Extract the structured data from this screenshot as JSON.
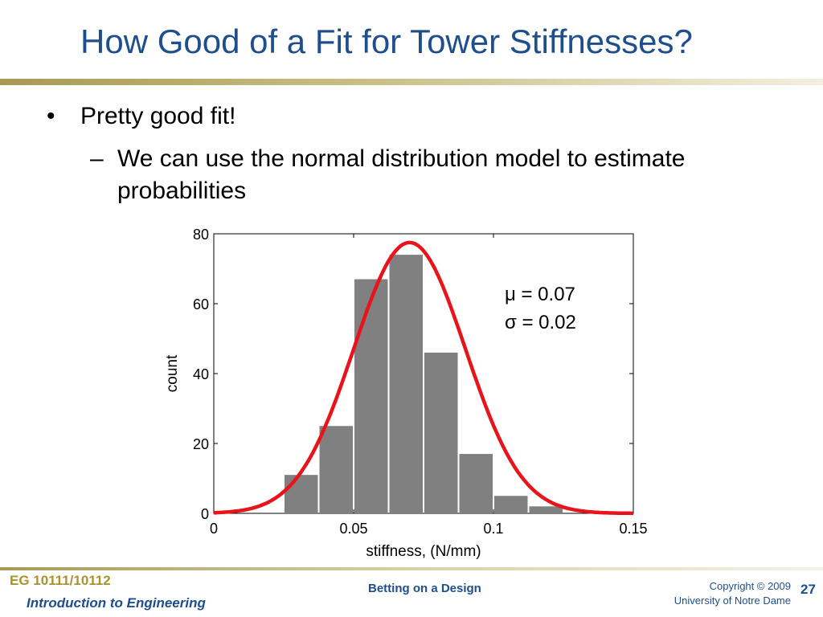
{
  "slide": {
    "title": "How Good of a Fit for Tower Stiffnesses?",
    "bullets": [
      {
        "marker": "•",
        "text": "Pretty good fit!"
      },
      {
        "marker": "–",
        "text": "We can use the normal distribution model to estimate probabilities"
      }
    ]
  },
  "chart_data": {
    "type": "bar",
    "bins": [
      {
        "x0": 0.0,
        "x1": 0.0125,
        "value": 0
      },
      {
        "x0": 0.0125,
        "x1": 0.025,
        "value": 0
      },
      {
        "x0": 0.025,
        "x1": 0.0375,
        "value": 11
      },
      {
        "x0": 0.0375,
        "x1": 0.05,
        "value": 25
      },
      {
        "x0": 0.05,
        "x1": 0.0625,
        "value": 67
      },
      {
        "x0": 0.0625,
        "x1": 0.075,
        "value": 74
      },
      {
        "x0": 0.075,
        "x1": 0.0875,
        "value": 46
      },
      {
        "x0": 0.0875,
        "x1": 0.1,
        "value": 17
      },
      {
        "x0": 0.1,
        "x1": 0.1125,
        "value": 5
      },
      {
        "x0": 0.1125,
        "x1": 0.125,
        "value": 2
      },
      {
        "x0": 0.125,
        "x1": 0.1375,
        "value": 0
      },
      {
        "x0": 0.1375,
        "x1": 0.15,
        "value": 0
      }
    ],
    "fit_curve": {
      "type": "normal",
      "mu": 0.07,
      "sigma": 0.02,
      "peak": 77.5,
      "color": "#e8141b"
    },
    "bar_color": "#808080",
    "xlabel": "stiffness, (N/mm)",
    "ylabel": "count",
    "xlim": [
      0,
      0.15
    ],
    "ylim": [
      0,
      80
    ],
    "xticks": [
      "0",
      "0.05",
      "0.1",
      "0.15"
    ],
    "yticks": [
      "0",
      "20",
      "40",
      "60",
      "80"
    ],
    "annotations": [
      "μ = 0.07",
      "σ = 0.02"
    ],
    "grid": false
  },
  "footer": {
    "course_code": "EG 10111/10112",
    "course_name": "Introduction to Engineering",
    "topic": "Betting on a Design",
    "copyright": "Copyright © 2009",
    "university": "University of Notre Dame",
    "page": "27"
  }
}
